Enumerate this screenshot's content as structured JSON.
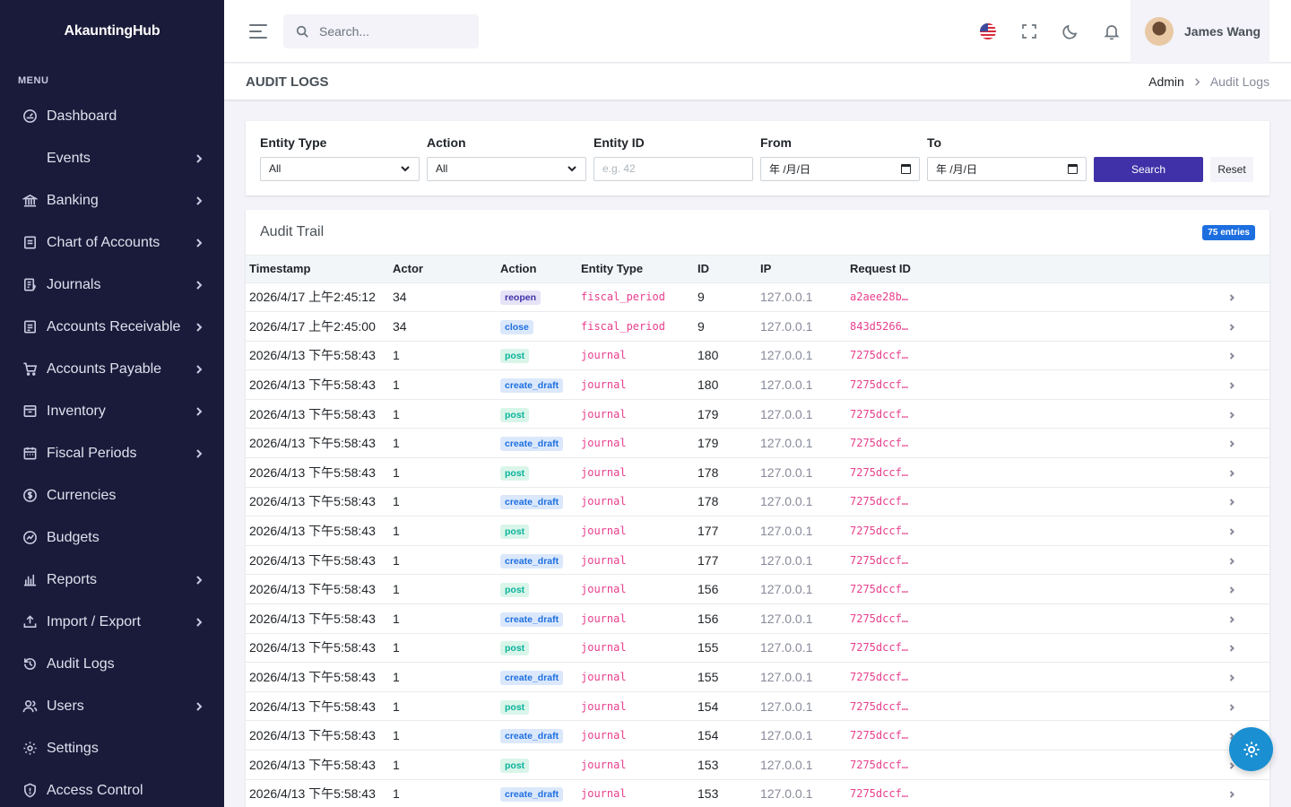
{
  "app": {
    "brand": "AkauntingHub"
  },
  "sidebar": {
    "menu_title": "MENU",
    "items": [
      {
        "label": "Dashboard",
        "icon": "dashboard-icon",
        "chevron": false
      },
      {
        "label": "Events",
        "icon": "",
        "chevron": true
      },
      {
        "label": "Banking",
        "icon": "bank-icon",
        "chevron": true
      },
      {
        "label": "Chart of Accounts",
        "icon": "ledger-icon",
        "chevron": true
      },
      {
        "label": "Journals",
        "icon": "journal-icon",
        "chevron": true
      },
      {
        "label": "Accounts Receivable",
        "icon": "receivable-icon",
        "chevron": true
      },
      {
        "label": "Accounts Payable",
        "icon": "cart-icon",
        "chevron": true
      },
      {
        "label": "Inventory",
        "icon": "inventory-icon",
        "chevron": true
      },
      {
        "label": "Fiscal Periods",
        "icon": "calendar-icon",
        "chevron": true
      },
      {
        "label": "Currencies",
        "icon": "currency-icon",
        "chevron": false
      },
      {
        "label": "Budgets",
        "icon": "budget-icon",
        "chevron": false
      },
      {
        "label": "Reports",
        "icon": "bar-chart-icon",
        "chevron": true
      },
      {
        "label": "Import / Export",
        "icon": "upload-icon",
        "chevron": true
      },
      {
        "label": "Audit Logs",
        "icon": "history-icon",
        "chevron": false
      },
      {
        "label": "Users",
        "icon": "users-icon",
        "chevron": true
      },
      {
        "label": "Settings",
        "icon": "gear-icon",
        "chevron": false
      },
      {
        "label": "Access Control",
        "icon": "shield-icon",
        "chevron": false
      }
    ]
  },
  "topbar": {
    "search_placeholder": "Search...",
    "user_name": "James Wang"
  },
  "page": {
    "title": "AUDIT LOGS",
    "breadcrumb": [
      "Admin",
      "Audit Logs"
    ]
  },
  "filters": {
    "entity_type_label": "Entity Type",
    "entity_type_value": "All",
    "action_label": "Action",
    "action_value": "All",
    "entity_id_label": "Entity ID",
    "entity_id_placeholder": "e.g. 42",
    "from_label": "From",
    "from_value": "年 /月/日",
    "to_label": "To",
    "to_value": "年 /月/日",
    "search_button": "Search",
    "reset_button": "Reset"
  },
  "trail": {
    "title": "Audit Trail",
    "entries_badge": "75 entries",
    "columns": [
      "Timestamp",
      "Actor",
      "Action",
      "Entity Type",
      "ID",
      "IP",
      "Request ID"
    ],
    "rows": [
      {
        "timestamp": "2026/4/17 上午2:45:12",
        "actor": "34",
        "action": "reopen",
        "entity_type": "fiscal_period",
        "id": "9",
        "ip": "127.0.0.1",
        "request_id": "a2aee28b…"
      },
      {
        "timestamp": "2026/4/17 上午2:45:00",
        "actor": "34",
        "action": "close",
        "entity_type": "fiscal_period",
        "id": "9",
        "ip": "127.0.0.1",
        "request_id": "843d5266…"
      },
      {
        "timestamp": "2026/4/13 下午5:58:43",
        "actor": "1",
        "action": "post",
        "entity_type": "journal",
        "id": "180",
        "ip": "127.0.0.1",
        "request_id": "7275dccf…"
      },
      {
        "timestamp": "2026/4/13 下午5:58:43",
        "actor": "1",
        "action": "create_draft",
        "entity_type": "journal",
        "id": "180",
        "ip": "127.0.0.1",
        "request_id": "7275dccf…"
      },
      {
        "timestamp": "2026/4/13 下午5:58:43",
        "actor": "1",
        "action": "post",
        "entity_type": "journal",
        "id": "179",
        "ip": "127.0.0.1",
        "request_id": "7275dccf…"
      },
      {
        "timestamp": "2026/4/13 下午5:58:43",
        "actor": "1",
        "action": "create_draft",
        "entity_type": "journal",
        "id": "179",
        "ip": "127.0.0.1",
        "request_id": "7275dccf…"
      },
      {
        "timestamp": "2026/4/13 下午5:58:43",
        "actor": "1",
        "action": "post",
        "entity_type": "journal",
        "id": "178",
        "ip": "127.0.0.1",
        "request_id": "7275dccf…"
      },
      {
        "timestamp": "2026/4/13 下午5:58:43",
        "actor": "1",
        "action": "create_draft",
        "entity_type": "journal",
        "id": "178",
        "ip": "127.0.0.1",
        "request_id": "7275dccf…"
      },
      {
        "timestamp": "2026/4/13 下午5:58:43",
        "actor": "1",
        "action": "post",
        "entity_type": "journal",
        "id": "177",
        "ip": "127.0.0.1",
        "request_id": "7275dccf…"
      },
      {
        "timestamp": "2026/4/13 下午5:58:43",
        "actor": "1",
        "action": "create_draft",
        "entity_type": "journal",
        "id": "177",
        "ip": "127.0.0.1",
        "request_id": "7275dccf…"
      },
      {
        "timestamp": "2026/4/13 下午5:58:43",
        "actor": "1",
        "action": "post",
        "entity_type": "journal",
        "id": "156",
        "ip": "127.0.0.1",
        "request_id": "7275dccf…"
      },
      {
        "timestamp": "2026/4/13 下午5:58:43",
        "actor": "1",
        "action": "create_draft",
        "entity_type": "journal",
        "id": "156",
        "ip": "127.0.0.1",
        "request_id": "7275dccf…"
      },
      {
        "timestamp": "2026/4/13 下午5:58:43",
        "actor": "1",
        "action": "post",
        "entity_type": "journal",
        "id": "155",
        "ip": "127.0.0.1",
        "request_id": "7275dccf…"
      },
      {
        "timestamp": "2026/4/13 下午5:58:43",
        "actor": "1",
        "action": "create_draft",
        "entity_type": "journal",
        "id": "155",
        "ip": "127.0.0.1",
        "request_id": "7275dccf…"
      },
      {
        "timestamp": "2026/4/13 下午5:58:43",
        "actor": "1",
        "action": "post",
        "entity_type": "journal",
        "id": "154",
        "ip": "127.0.0.1",
        "request_id": "7275dccf…"
      },
      {
        "timestamp": "2026/4/13 下午5:58:43",
        "actor": "1",
        "action": "create_draft",
        "entity_type": "journal",
        "id": "154",
        "ip": "127.0.0.1",
        "request_id": "7275dccf…"
      },
      {
        "timestamp": "2026/4/13 下午5:58:43",
        "actor": "1",
        "action": "post",
        "entity_type": "journal",
        "id": "153",
        "ip": "127.0.0.1",
        "request_id": "7275dccf…"
      },
      {
        "timestamp": "2026/4/13 下午5:58:43",
        "actor": "1",
        "action": "create_draft",
        "entity_type": "journal",
        "id": "153",
        "ip": "127.0.0.1",
        "request_id": "7275dccf…"
      }
    ]
  },
  "colors": {
    "sidebar_bg": "#1a1a3a",
    "primary": "#4031a8",
    "badge_blue": "#1d6fe0",
    "mono_pink": "#e83e8c",
    "fab": "#1a8fd1"
  }
}
